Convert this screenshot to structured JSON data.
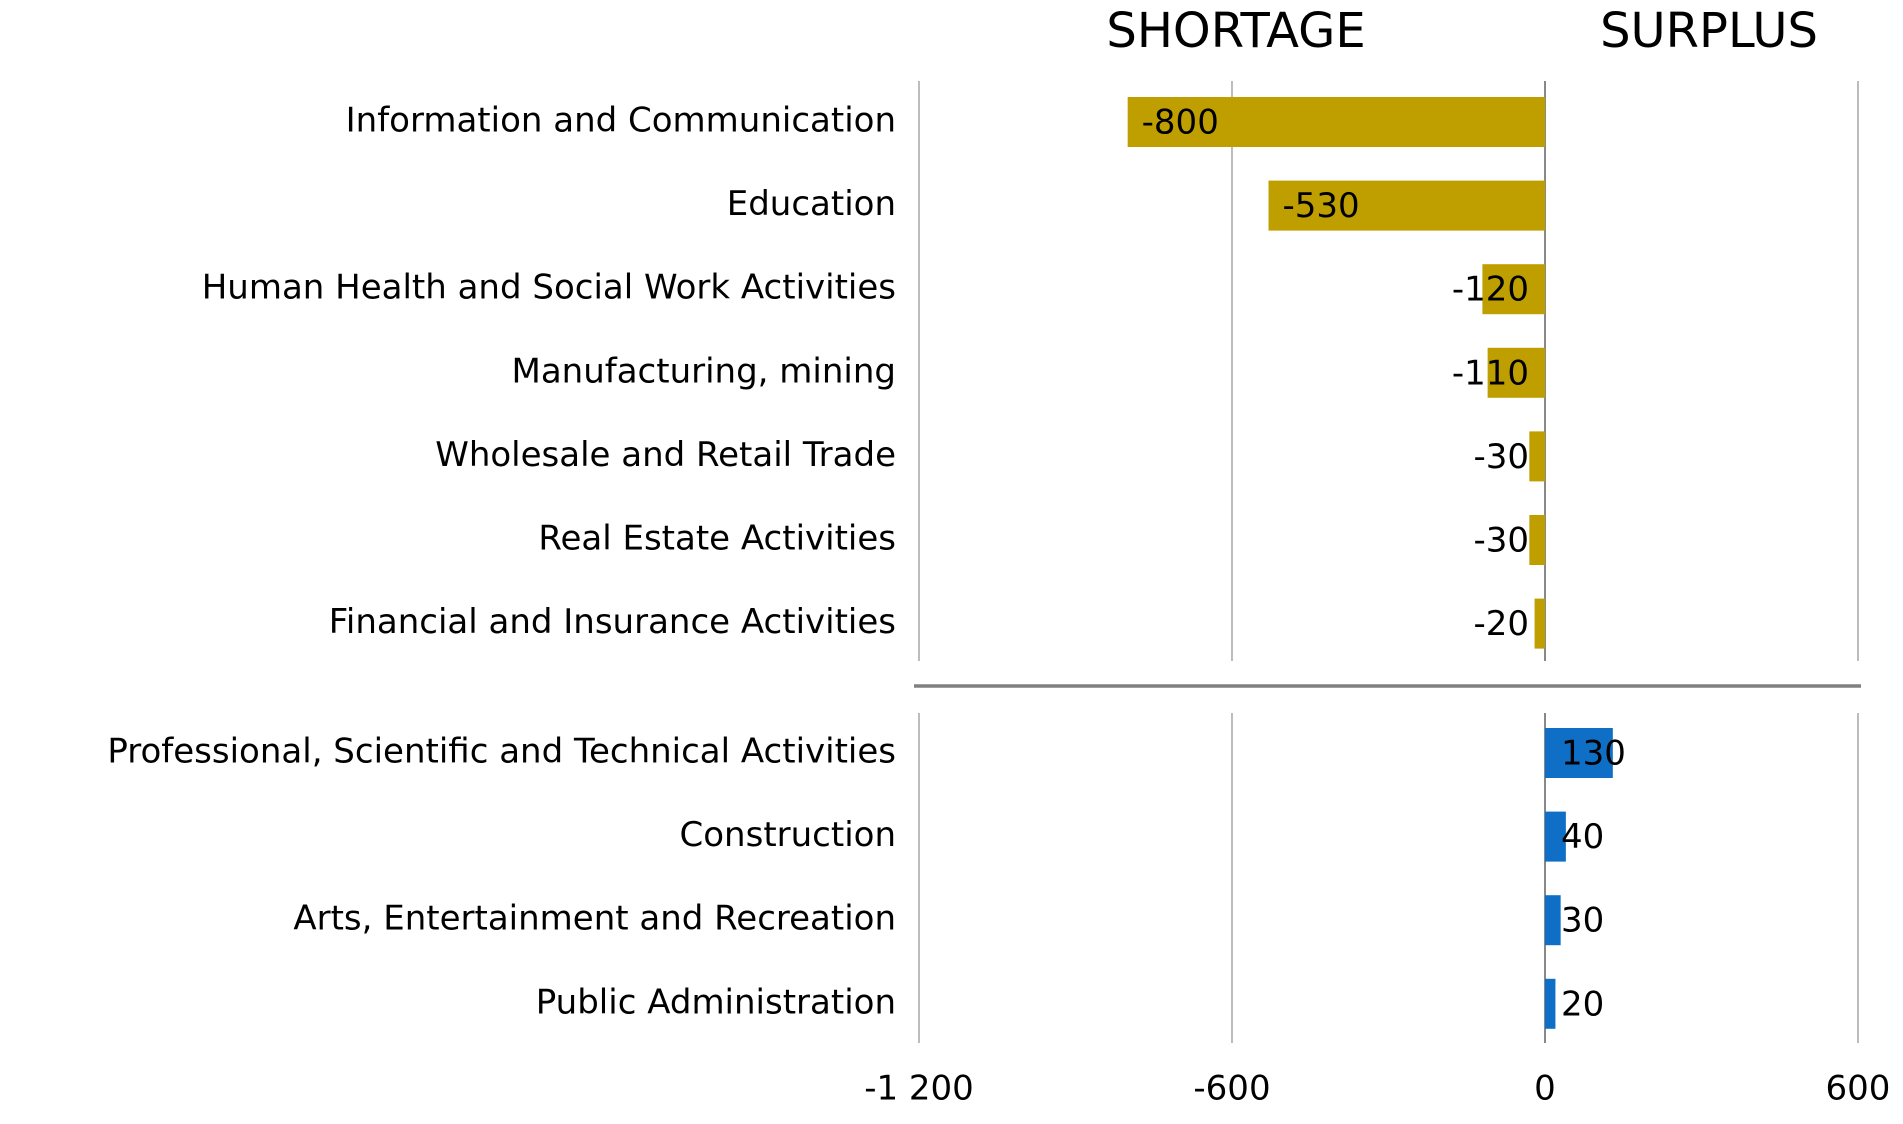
{
  "chart_data": {
    "type": "bar",
    "orientation": "horizontal",
    "annotations": [
      "SHORTAGE",
      "SURPLUS"
    ],
    "categories": [
      "Information and Communication",
      "Education",
      "Human Health and Social Work Activities",
      "Manufacturing, mining",
      "Wholesale and Retail Trade",
      "Real Estate Activities",
      "Financial and Insurance Activities",
      "Professional, Scientific and Technical Activities",
      "Construction",
      "Arts, Entertainment and Recreation",
      "Public Administration"
    ],
    "values": [
      -800,
      -530,
      -120,
      -110,
      -30,
      -30,
      -20,
      130,
      40,
      30,
      20
    ],
    "colors": [
      "#bf9f00",
      "#bf9f00",
      "#bf9f00",
      "#bf9f00",
      "#bf9f00",
      "#bf9f00",
      "#bf9f00",
      "#0f6fc6",
      "#0f6fc6",
      "#0f6fc6",
      "#0f6fc6"
    ],
    "xlim": [
      -1200,
      600
    ],
    "xticks": [
      {
        "value": -1200,
        "label": "-1 200"
      },
      -600,
      0,
      600
    ],
    "grid": true
  }
}
